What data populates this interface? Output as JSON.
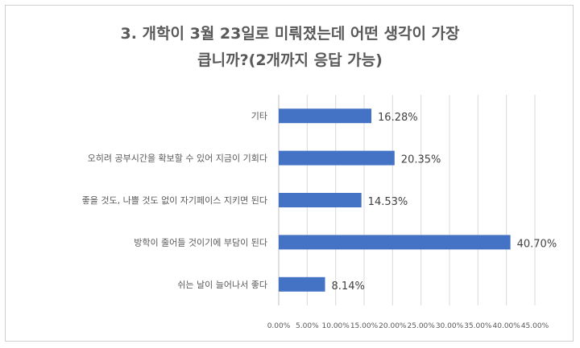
{
  "chart_data": {
    "type": "bar",
    "orientation": "horizontal",
    "title_line1": "3. 개학이 3월 23일로 미뤄졌는데 어떤 생각이 가장",
    "title_line2": "큽니까?(2개까지 응답 가능)",
    "categories": [
      "기타",
      "오히려 공부시간을 확보할 수 있어 지금이 기회다",
      "좋을 것도, 나쁠 것도 없이 자기페이스 지키면 된다",
      "방학이 줄어들 것이기에 부담이 된다",
      "쉬는 날이 늘어나서 좋다"
    ],
    "values": [
      16.28,
      20.35,
      14.53,
      40.7,
      8.14
    ],
    "value_labels": [
      "16.28%",
      "20.35%",
      "14.53%",
      "40.70%",
      "8.14%"
    ],
    "xlim": [
      0,
      45
    ],
    "x_ticks": [
      0,
      5,
      10,
      15,
      20,
      25,
      30,
      35,
      40,
      45
    ],
    "x_tick_labels": [
      "0.00%",
      "5.00%",
      "10.00%",
      "15.00%",
      "20.00%",
      "25.00%",
      "30.00%",
      "35.00%",
      "40.00%",
      "45.00%"
    ],
    "grid": "vertical",
    "legend": "none",
    "bar_color": "#4472C4"
  }
}
